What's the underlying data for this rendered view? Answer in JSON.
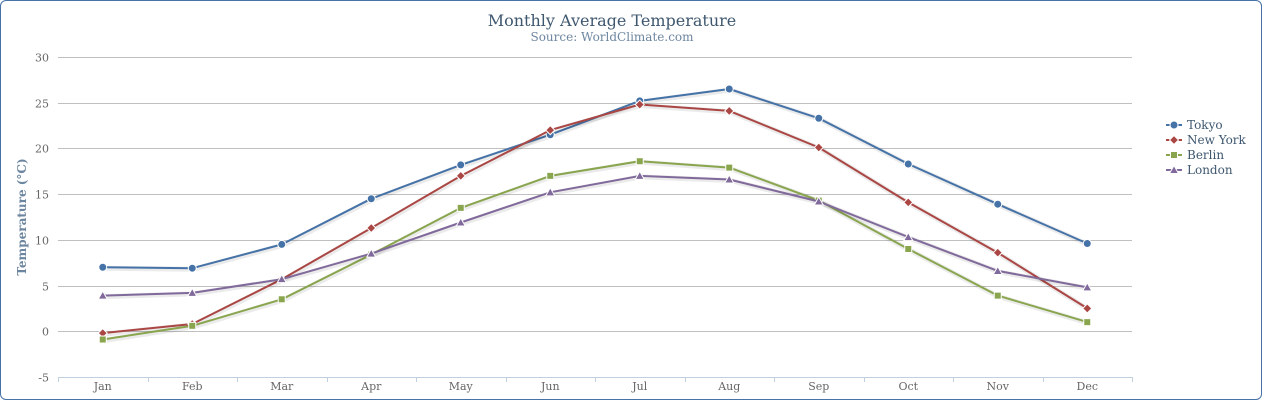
{
  "chart_data": {
    "type": "line",
    "title": "Monthly Average Temperature",
    "subtitle": "Source: WorldClimate.com",
    "xlabel": "",
    "ylabel": "Temperature (°C)",
    "categories": [
      "Jan",
      "Feb",
      "Mar",
      "Apr",
      "May",
      "Jun",
      "Jul",
      "Aug",
      "Sep",
      "Oct",
      "Nov",
      "Dec"
    ],
    "ylim": [
      -5,
      30
    ],
    "yticks": [
      -5,
      0,
      5,
      10,
      15,
      20,
      25,
      30
    ],
    "grid": true,
    "legend_position": "right",
    "series": [
      {
        "name": "Tokyo",
        "color": "#4572a7",
        "marker": "circle",
        "values": [
          7.0,
          6.9,
          9.5,
          14.5,
          18.2,
          21.5,
          25.2,
          26.5,
          23.3,
          18.3,
          13.9,
          9.6
        ]
      },
      {
        "name": "New York",
        "color": "#aa4643",
        "marker": "diamond",
        "values": [
          -0.2,
          0.8,
          5.7,
          11.3,
          17.0,
          22.0,
          24.8,
          24.1,
          20.1,
          14.1,
          8.6,
          2.5
        ]
      },
      {
        "name": "Berlin",
        "color": "#89a54e",
        "marker": "square",
        "values": [
          -0.9,
          0.6,
          3.5,
          8.4,
          13.5,
          17.0,
          18.6,
          17.9,
          14.3,
          9.0,
          3.9,
          1.0
        ]
      },
      {
        "name": "London",
        "color": "#80699b",
        "marker": "triangle",
        "values": [
          3.9,
          4.2,
          5.7,
          8.5,
          11.9,
          15.2,
          17.0,
          16.6,
          14.2,
          10.3,
          6.6,
          4.8
        ]
      }
    ]
  }
}
